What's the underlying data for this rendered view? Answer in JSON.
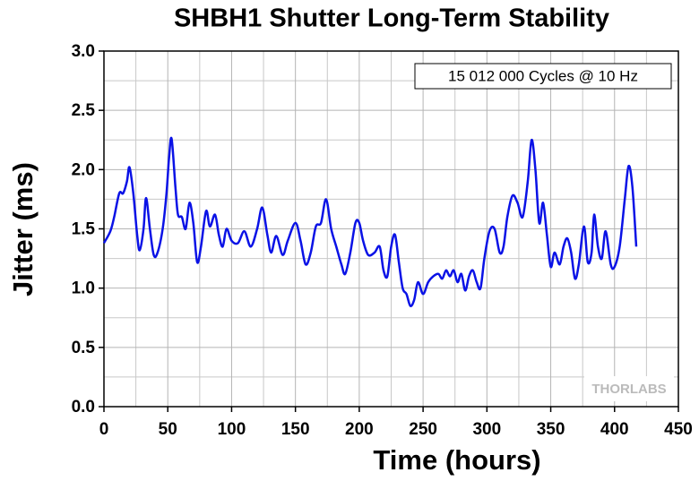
{
  "chart_data": {
    "type": "line",
    "title": "SHBH1 Shutter Long-Term Stability",
    "xlabel": "Time (hours)",
    "ylabel": "Jitter (ms)",
    "annotation": "15 012 000 Cycles @ 10 Hz",
    "watermark": "THORLABS",
    "xlim": [
      0,
      450
    ],
    "ylim": [
      0,
      3
    ],
    "xticks": [
      0,
      50,
      100,
      150,
      200,
      250,
      300,
      350,
      400,
      450
    ],
    "yticks": [
      {
        "value": 0,
        "label": "0.0"
      },
      {
        "value": 0.5,
        "label": "0.5"
      },
      {
        "value": 1,
        "label": "1.0"
      },
      {
        "value": 1.5,
        "label": "1.5"
      },
      {
        "value": 2,
        "label": "2.0"
      },
      {
        "value": 2.5,
        "label": "2.5"
      },
      {
        "value": 3,
        "label": "3.0"
      }
    ],
    "xminorticks": [
      25,
      75,
      125,
      175,
      225,
      275,
      325,
      375,
      425
    ],
    "yminorticks": [
      0.25,
      0.75,
      1.25,
      1.75,
      2.25,
      2.75
    ],
    "grid": true,
    "series": [
      {
        "color": "#0a12e6",
        "x": [
          0,
          5,
          8,
          12,
          15,
          18,
          20,
          23,
          26,
          28,
          31,
          33,
          36,
          39,
          42,
          46,
          49,
          51,
          53,
          56,
          58,
          61,
          64,
          67,
          70,
          73,
          76,
          80,
          83,
          87,
          90,
          93,
          96,
          100,
          105,
          110,
          115,
          120,
          124,
          128,
          131,
          135,
          140,
          144,
          150,
          154,
          158,
          162,
          166,
          170,
          174,
          178,
          182,
          186,
          189,
          193,
          197,
          200,
          203,
          207,
          212,
          216,
          219,
          222,
          225,
          228,
          231,
          234,
          237,
          240,
          243,
          246,
          250,
          254,
          258,
          262,
          265,
          268,
          271,
          274,
          277,
          280,
          283,
          286,
          289,
          292,
          295,
          298,
          302,
          306,
          310,
          313,
          316,
          320,
          324,
          328,
          332,
          335,
          338,
          341,
          344,
          347,
          350,
          353,
          357,
          360,
          363,
          366,
          369,
          372,
          376,
          379,
          382,
          384,
          387,
          390,
          393,
          397,
          400,
          404,
          408,
          411,
          414,
          417
        ],
        "values": [
          1.38,
          1.48,
          1.6,
          1.8,
          1.8,
          1.9,
          2.02,
          1.8,
          1.45,
          1.32,
          1.5,
          1.76,
          1.5,
          1.28,
          1.3,
          1.5,
          1.8,
          2.1,
          2.26,
          1.85,
          1.62,
          1.6,
          1.5,
          1.72,
          1.55,
          1.22,
          1.35,
          1.65,
          1.52,
          1.62,
          1.45,
          1.35,
          1.5,
          1.4,
          1.38,
          1.48,
          1.35,
          1.5,
          1.68,
          1.45,
          1.3,
          1.44,
          1.28,
          1.4,
          1.55,
          1.4,
          1.2,
          1.3,
          1.52,
          1.55,
          1.75,
          1.5,
          1.35,
          1.2,
          1.12,
          1.3,
          1.55,
          1.55,
          1.4,
          1.28,
          1.3,
          1.35,
          1.15,
          1.1,
          1.35,
          1.45,
          1.22,
          1.0,
          0.95,
          0.85,
          0.9,
          1.05,
          0.95,
          1.05,
          1.1,
          1.12,
          1.08,
          1.15,
          1.1,
          1.15,
          1.05,
          1.12,
          0.98,
          1.1,
          1.15,
          1.05,
          1.0,
          1.25,
          1.48,
          1.5,
          1.3,
          1.35,
          1.6,
          1.78,
          1.72,
          1.6,
          1.9,
          2.25,
          2.0,
          1.55,
          1.72,
          1.45,
          1.18,
          1.3,
          1.2,
          1.35,
          1.42,
          1.3,
          1.08,
          1.2,
          1.52,
          1.22,
          1.3,
          1.62,
          1.35,
          1.25,
          1.48,
          1.2,
          1.18,
          1.35,
          1.75,
          2.03,
          1.85,
          1.35
        ]
      }
    ]
  }
}
